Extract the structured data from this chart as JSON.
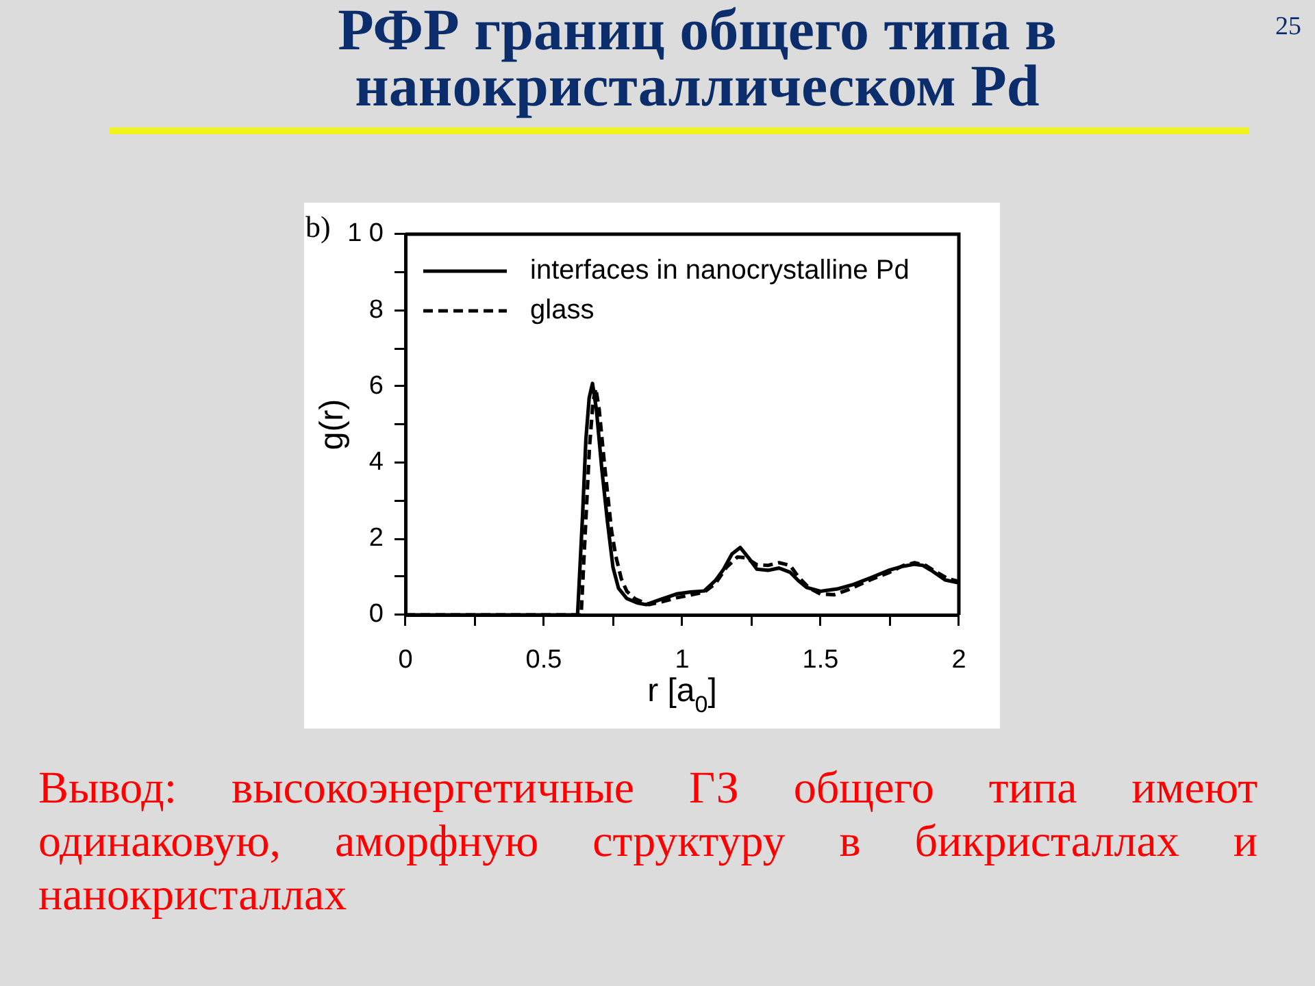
{
  "chart_data": {
    "type": "line",
    "title": "РФР границ общего типа в нанокристаллическом Pd",
    "xlabel": "r [a$_{0}$]",
    "ylabel": "g(r)",
    "annotations": [
      "b)",
      "25",
      "Вывод: высокоэнергетичные ГЗ общего типа имеют одинаковую, аморфную структуру в бикристаллах и нанокристаллах"
    ],
    "xlim": [
      0,
      2
    ],
    "ylim": [
      0,
      10
    ],
    "xticks": [
      0,
      {
        "value": 0.25,
        "label": null
      },
      0.5,
      {
        "value": 0.75,
        "label": null
      },
      1,
      {
        "value": 1.25,
        "label": null
      },
      1.5,
      {
        "value": 1.75,
        "label": null
      },
      2
    ],
    "yticks": [
      0,
      {
        "value": 1,
        "label": null
      },
      2,
      {
        "value": 3,
        "label": null
      },
      4,
      {
        "value": 5,
        "label": null
      },
      6,
      {
        "value": 7,
        "label": null
      },
      8,
      {
        "value": 9,
        "label": null
      },
      {
        "value": 10,
        "label": "1 0"
      }
    ],
    "legend": "top left",
    "marker": "none",
    "series": [
      {
        "name": "interfaces in nanocrystalline Pd",
        "color": "#000000",
        "line_style": "solid",
        "x": [
          0,
          0.622,
          0.64,
          0.652,
          0.664,
          0.676,
          0.69,
          0.71,
          0.73,
          0.75,
          0.77,
          0.8,
          0.84,
          0.87,
          0.92,
          0.98,
          1.03,
          1.08,
          1.12,
          1.15,
          1.18,
          1.21,
          1.24,
          1.27,
          1.31,
          1.35,
          1.39,
          1.42,
          1.45,
          1.5,
          1.56,
          1.62,
          1.69,
          1.75,
          1.8,
          1.84,
          1.87,
          1.9,
          1.95,
          2.0
        ],
        "values": [
          0,
          0,
          2.6,
          4.6,
          5.7,
          6.08,
          5.4,
          3.8,
          2.45,
          1.25,
          0.7,
          0.43,
          0.31,
          0.27,
          0.4,
          0.55,
          0.6,
          0.63,
          0.9,
          1.2,
          1.6,
          1.77,
          1.5,
          1.2,
          1.17,
          1.23,
          1.12,
          0.9,
          0.72,
          0.62,
          0.68,
          0.8,
          1.0,
          1.18,
          1.28,
          1.33,
          1.3,
          1.17,
          0.92,
          0.84
        ]
      },
      {
        "name": "glass",
        "color": "#000000",
        "line_style": "dashed",
        "x": [
          0,
          0.635,
          0.65,
          0.665,
          0.678,
          0.688,
          0.7,
          0.72,
          0.745,
          0.76,
          0.78,
          0.8,
          0.83,
          0.88,
          0.93,
          0.98,
          1.03,
          1.08,
          1.12,
          1.16,
          1.2,
          1.23,
          1.27,
          1.31,
          1.35,
          1.39,
          1.42,
          1.46,
          1.5,
          1.55,
          1.6,
          1.68,
          1.75,
          1.8,
          1.84,
          1.88,
          1.92,
          1.96,
          2.0
        ],
        "values": [
          0,
          0,
          2.2,
          4.4,
          5.6,
          5.95,
          5.4,
          3.9,
          2.2,
          1.55,
          0.95,
          0.62,
          0.42,
          0.27,
          0.35,
          0.45,
          0.52,
          0.6,
          0.82,
          1.25,
          1.52,
          1.5,
          1.32,
          1.3,
          1.37,
          1.3,
          1.0,
          0.7,
          0.55,
          0.53,
          0.66,
          0.92,
          1.12,
          1.3,
          1.37,
          1.3,
          1.12,
          0.95,
          0.88
        ]
      }
    ]
  }
}
